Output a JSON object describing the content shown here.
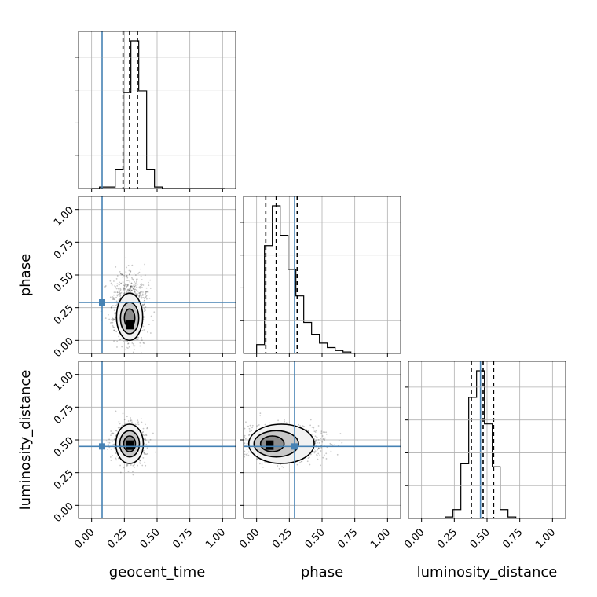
{
  "chart_data": {
    "type": "corner",
    "parameters": [
      "geocent_time",
      "phase",
      "luminosity_distance"
    ],
    "axis_labels": {
      "geocent_time": "geocent_time",
      "phase": "phase",
      "luminosity_distance": "luminosity_distance"
    },
    "range": [
      -0.1,
      1.1
    ],
    "ticks": [
      0.0,
      0.25,
      0.5,
      0.75,
      1.0
    ],
    "tick_labels": [
      "0.00",
      "0.25",
      "0.50",
      "0.75",
      "1.00"
    ],
    "grid": true,
    "truths": {
      "geocent_time": 0.08,
      "phase": 0.29,
      "luminosity_distance": 0.45
    },
    "truth_color": "#4682b4",
    "contour_color": "#000000",
    "quantiles": {
      "geocent_time": [
        0.24,
        0.29,
        0.35
      ],
      "phase": [
        0.07,
        0.15,
        0.31
      ],
      "luminosity_distance": [
        0.38,
        0.47,
        0.55
      ]
    },
    "histograms": {
      "geocent_time": {
        "bin_edges": [
          0.0,
          0.06,
          0.12,
          0.18,
          0.24,
          0.3,
          0.36,
          0.42,
          0.48,
          0.54,
          0.6,
          0.66,
          0.72,
          0.78,
          0.84,
          0.9,
          0.96,
          1.02
        ],
        "counts": [
          0,
          0.01,
          0.01,
          0.13,
          0.65,
          1.0,
          0.66,
          0.13,
          0.01,
          0,
          0,
          0,
          0,
          0,
          0,
          0,
          0
        ]
      },
      "phase": {
        "bin_edges": [
          0.0,
          0.06,
          0.12,
          0.18,
          0.24,
          0.3,
          0.36,
          0.42,
          0.48,
          0.54,
          0.6,
          0.66,
          0.72,
          0.78,
          0.84,
          0.9,
          0.96,
          1.02
        ],
        "counts": [
          0.06,
          0.73,
          1.0,
          0.8,
          0.57,
          0.39,
          0.21,
          0.13,
          0.07,
          0.04,
          0.02,
          0.01,
          0,
          0,
          0,
          0,
          0
        ]
      },
      "luminosity_distance": {
        "bin_edges": [
          0.0,
          0.06,
          0.12,
          0.18,
          0.24,
          0.3,
          0.36,
          0.42,
          0.48,
          0.54,
          0.6,
          0.66,
          0.72,
          0.78,
          0.84,
          0.9,
          0.96,
          1.02
        ],
        "counts": [
          0,
          0,
          0,
          0.01,
          0.06,
          0.37,
          0.82,
          1.0,
          0.64,
          0.35,
          0.06,
          0.01,
          0,
          0,
          0,
          0,
          0
        ]
      }
    },
    "scatter_panels": [
      {
        "x": "geocent_time",
        "y": "phase",
        "peak": [
          0.29,
          0.12
        ],
        "contour_levels": [
          {
            "cx": 0.29,
            "cy": 0.17,
            "rx": 0.04,
            "ry": 0.07
          },
          {
            "cx": 0.29,
            "cy": 0.17,
            "rx": 0.07,
            "ry": 0.12
          },
          {
            "cx": 0.29,
            "cy": 0.18,
            "rx": 0.1,
            "ry": 0.18
          }
        ],
        "cloud": {
          "cx": 0.29,
          "cy": 0.22,
          "sx": 0.055,
          "sy": 0.13
        }
      },
      {
        "x": "geocent_time",
        "y": "luminosity_distance",
        "peak": [
          0.29,
          0.46
        ],
        "contour_levels": [
          {
            "cx": 0.29,
            "cy": 0.47,
            "rx": 0.045,
            "ry": 0.06
          },
          {
            "cx": 0.29,
            "cy": 0.47,
            "rx": 0.075,
            "ry": 0.1
          },
          {
            "cx": 0.29,
            "cy": 0.47,
            "rx": 0.105,
            "ry": 0.15
          }
        ],
        "cloud": {
          "cx": 0.29,
          "cy": 0.47,
          "sx": 0.05,
          "sy": 0.07
        }
      },
      {
        "x": "phase",
        "y": "luminosity_distance",
        "peak": [
          0.1,
          0.46
        ],
        "contour_levels": [
          {
            "cx": 0.12,
            "cy": 0.47,
            "rx": 0.09,
            "ry": 0.06
          },
          {
            "cx": 0.15,
            "cy": 0.47,
            "rx": 0.17,
            "ry": 0.1
          },
          {
            "cx": 0.19,
            "cy": 0.47,
            "rx": 0.25,
            "ry": 0.15
          }
        ],
        "cloud": {
          "cx": 0.2,
          "cy": 0.47,
          "sx": 0.14,
          "sy": 0.065
        }
      }
    ]
  }
}
